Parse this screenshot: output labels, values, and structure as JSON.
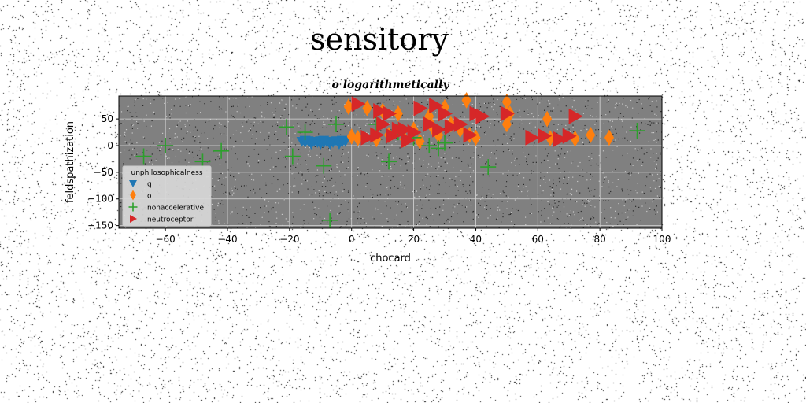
{
  "suptitle": "sensitory",
  "chart_data": {
    "type": "scatter",
    "title": "o logarithmetically",
    "xlabel": "chocard",
    "ylabel": "feldspathization",
    "xlim": [
      -75,
      100
    ],
    "ylim": [
      -155,
      93
    ],
    "xticks": [
      -60,
      -40,
      -20,
      0,
      20,
      40,
      60,
      80,
      100
    ],
    "yticks": [
      50,
      0,
      -50,
      -100,
      -150
    ],
    "grid": true,
    "background": "#808080",
    "legend": {
      "title": "unphilosophicalness",
      "placement": "lower-left"
    },
    "series": [
      {
        "name": "q",
        "marker": "triangle-down",
        "color": "#1f77b4",
        "points": [
          [
            -16,
            8
          ],
          [
            -15,
            6
          ],
          [
            -14,
            9
          ],
          [
            -13,
            5
          ],
          [
            -12,
            8
          ],
          [
            -11,
            6
          ],
          [
            -10,
            9
          ],
          [
            -9,
            5
          ],
          [
            -8,
            7
          ],
          [
            -7,
            8
          ],
          [
            -6,
            6
          ],
          [
            -5,
            9
          ],
          [
            -4,
            5
          ],
          [
            -3,
            7
          ],
          [
            -2,
            8
          ],
          [
            -13,
            3
          ],
          [
            -10,
            3
          ],
          [
            -7,
            3
          ],
          [
            -4,
            3
          ],
          [
            -15,
            10
          ],
          [
            -9,
            10
          ],
          [
            -3,
            10
          ]
        ]
      },
      {
        "name": "o",
        "marker": "diamond",
        "color": "#ff7f0e",
        "points": [
          [
            -1,
            73
          ],
          [
            0,
            17
          ],
          [
            2,
            14
          ],
          [
            5,
            70
          ],
          [
            8,
            12
          ],
          [
            10,
            65
          ],
          [
            12,
            20
          ],
          [
            15,
            60
          ],
          [
            17,
            12
          ],
          [
            20,
            30
          ],
          [
            22,
            8
          ],
          [
            25,
            55
          ],
          [
            26,
            35
          ],
          [
            28,
            20
          ],
          [
            30,
            72
          ],
          [
            32,
            40
          ],
          [
            35,
            30
          ],
          [
            37,
            85
          ],
          [
            38,
            20
          ],
          [
            40,
            15
          ],
          [
            50,
            82
          ],
          [
            50,
            40
          ],
          [
            51,
            60
          ],
          [
            63,
            50
          ],
          [
            64,
            14
          ],
          [
            72,
            13
          ],
          [
            77,
            20
          ],
          [
            83,
            15
          ]
        ]
      },
      {
        "name": "nonaccelerative",
        "marker": "plus",
        "color": "#2ca02c",
        "points": [
          [
            -67,
            -20
          ],
          [
            -60,
            0
          ],
          [
            -48,
            -30
          ],
          [
            -42,
            -10
          ],
          [
            -21,
            35
          ],
          [
            -19,
            -20
          ],
          [
            -15,
            25
          ],
          [
            -9,
            -38
          ],
          [
            -5,
            40
          ],
          [
            -7,
            -140
          ],
          [
            8,
            40
          ],
          [
            12,
            -30
          ],
          [
            15,
            25
          ],
          [
            20,
            15
          ],
          [
            25,
            0
          ],
          [
            28,
            -5
          ],
          [
            30,
            5
          ],
          [
            44,
            -40
          ],
          [
            92,
            28
          ]
        ]
      },
      {
        "name": "neutroceptor",
        "marker": "triangle-right",
        "color": "#d62728",
        "points": [
          [
            2,
            78
          ],
          [
            5,
            15
          ],
          [
            8,
            20
          ],
          [
            9,
            65
          ],
          [
            10,
            40
          ],
          [
            12,
            60
          ],
          [
            13,
            18
          ],
          [
            15,
            30
          ],
          [
            17,
            30
          ],
          [
            18,
            10
          ],
          [
            20,
            25
          ],
          [
            22,
            70
          ],
          [
            25,
            40
          ],
          [
            27,
            75
          ],
          [
            28,
            30
          ],
          [
            30,
            60
          ],
          [
            32,
            35
          ],
          [
            35,
            40
          ],
          [
            38,
            20
          ],
          [
            40,
            60
          ],
          [
            42,
            55
          ],
          [
            50,
            60
          ],
          [
            58,
            15
          ],
          [
            62,
            18
          ],
          [
            67,
            12
          ],
          [
            70,
            18
          ],
          [
            72,
            55
          ]
        ]
      }
    ]
  }
}
